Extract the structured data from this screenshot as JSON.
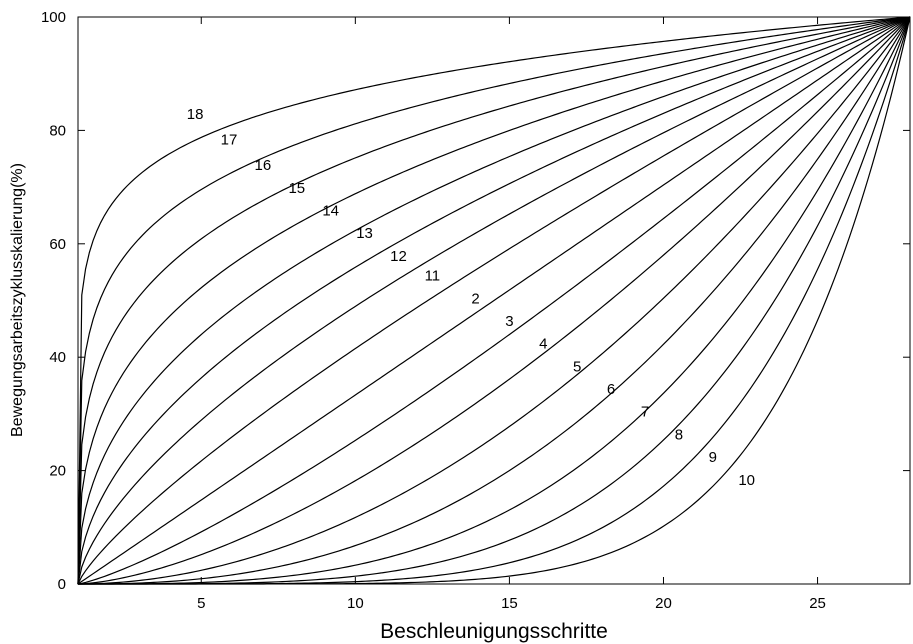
{
  "chart_data": {
    "type": "line",
    "title": "",
    "xlabel": "Beschleunigungsschritte",
    "ylabel": "Bewegungsarbeitszyklusskalierung(%)",
    "xlim": [
      1,
      28
    ],
    "ylim": [
      0,
      100
    ],
    "x_ticks": [
      5,
      10,
      15,
      20,
      25
    ],
    "y_ticks": [
      0,
      20,
      40,
      60,
      80,
      100
    ],
    "grid": false,
    "color": "#000000",
    "series": [
      {
        "name": "18",
        "exponent": 0.125,
        "label_x": 4.8,
        "label_y": 82
      },
      {
        "name": "17",
        "exponent": 0.19,
        "label_x": 5.9,
        "label_y": 77.5
      },
      {
        "name": "16",
        "exponent": 0.26,
        "label_x": 7.0,
        "label_y": 73
      },
      {
        "name": "15",
        "exponent": 0.34,
        "label_x": 8.1,
        "label_y": 69
      },
      {
        "name": "14",
        "exponent": 0.43,
        "label_x": 9.2,
        "label_y": 65
      },
      {
        "name": "13",
        "exponent": 0.53,
        "label_x": 10.3,
        "label_y": 61
      },
      {
        "name": "12",
        "exponent": 0.65,
        "label_x": 11.4,
        "label_y": 57
      },
      {
        "name": "11",
        "exponent": 0.8,
        "label_x": 12.5,
        "label_y": 53.5
      },
      {
        "name": "2",
        "exponent": 1.0,
        "label_x": 13.9,
        "label_y": 49.5
      },
      {
        "name": "3",
        "exponent": 1.25,
        "label_x": 15.0,
        "label_y": 45.5
      },
      {
        "name": "4",
        "exponent": 1.55,
        "label_x": 16.1,
        "label_y": 41.5
      },
      {
        "name": "5",
        "exponent": 1.95,
        "label_x": 17.2,
        "label_y": 37.5
      },
      {
        "name": "6",
        "exponent": 2.45,
        "label_x": 18.3,
        "label_y": 33.5
      },
      {
        "name": "7",
        "exponent": 3.1,
        "label_x": 19.4,
        "label_y": 29.5
      },
      {
        "name": "8",
        "exponent": 3.9,
        "label_x": 20.5,
        "label_y": 25.5
      },
      {
        "name": "9",
        "exponent": 5.0,
        "label_x": 21.6,
        "label_y": 21.5
      },
      {
        "name": "10",
        "exponent": 6.5,
        "label_x": 22.7,
        "label_y": 17.5
      }
    ]
  }
}
